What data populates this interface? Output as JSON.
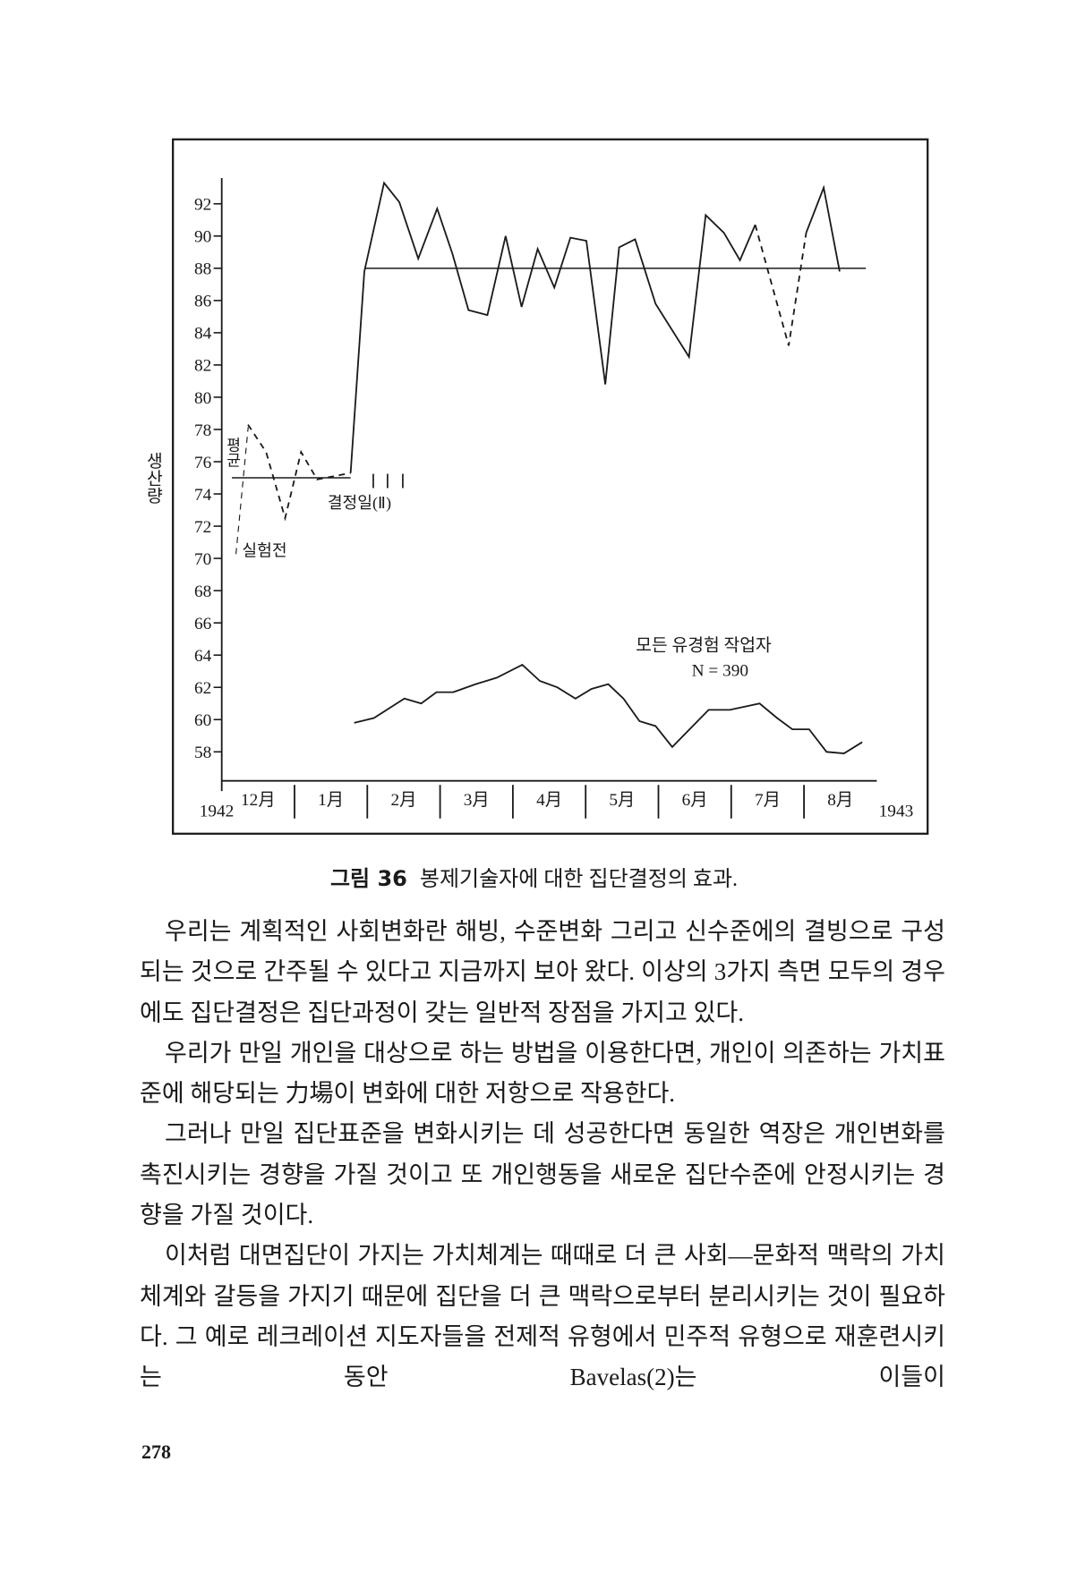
{
  "chart_data": {
    "type": "line",
    "y_label": "생산량",
    "xlim": [
      0,
      9
    ],
    "ylim": [
      56.2,
      93.6
    ],
    "yticks": [
      58,
      60,
      62,
      64,
      66,
      68,
      70,
      72,
      74,
      76,
      78,
      80,
      82,
      84,
      86,
      88,
      90,
      92
    ],
    "xticks": [
      {
        "value": 0,
        "label": "1942"
      },
      {
        "value": 0.5,
        "label": "12月"
      },
      {
        "value": 1.5,
        "label": "1月"
      },
      {
        "value": 2.5,
        "label": "2月"
      },
      {
        "value": 3.5,
        "label": "3月"
      },
      {
        "value": 4.5,
        "label": "4月"
      },
      {
        "value": 5.5,
        "label": "5月"
      },
      {
        "value": 6.5,
        "label": "6月"
      },
      {
        "value": 7.5,
        "label": "7月"
      },
      {
        "value": 8.5,
        "label": "8月"
      },
      {
        "value": 9,
        "label": "1943"
      }
    ],
    "x_dividers": [
      1,
      2,
      3,
      4,
      5,
      6,
      7,
      8
    ],
    "color": "#1a1a1a",
    "series": [
      {
        "style": "dashed",
        "x": [
          0.36,
          0.61,
          0.87,
          1.09,
          1.31,
          1.77
        ],
        "values": [
          78.3,
          76.6,
          72.5,
          76.6,
          74.9,
          75.3
        ]
      },
      {
        "style": "solid",
        "x": [
          1.77,
          1.96,
          2.23,
          2.44,
          2.7,
          2.96,
          3.17,
          3.39,
          3.65,
          3.9,
          4.12,
          4.34,
          4.57,
          4.79,
          5.01,
          5.27,
          5.46,
          5.68,
          5.96,
          6.42,
          6.65,
          6.9,
          7.12,
          7.33,
          7.79,
          8.03,
          8.27,
          8.49
        ],
        "values": [
          75.3,
          87.8,
          93.3,
          92.1,
          88.6,
          91.7,
          88.9,
          85.4,
          85.1,
          90.0,
          85.6,
          89.2,
          86.8,
          89.9,
          89.7,
          80.8,
          89.3,
          89.8,
          85.8,
          82.5,
          91.3,
          90.2,
          88.5,
          90.7,
          null,
          90.2,
          93.0,
          87.8
        ]
      },
      {
        "style": "dashed",
        "x": [
          7.33,
          7.79,
          8.03
        ],
        "values": [
          90.7,
          83.2,
          90.2
        ]
      },
      {
        "style": "solid",
        "x": [
          1.82,
          2.09,
          2.51,
          2.74,
          2.95,
          3.18,
          3.49,
          3.78,
          4.13,
          4.37,
          4.61,
          4.86,
          5.08,
          5.31,
          5.52,
          5.74,
          5.96,
          6.19,
          6.69,
          6.98,
          7.39,
          7.63,
          7.84,
          8.07,
          8.31,
          8.55,
          8.8
        ],
        "values": [
          59.8,
          60.1,
          61.3,
          61.0,
          61.7,
          61.7,
          62.2,
          62.6,
          63.4,
          62.4,
          62.0,
          61.3,
          61.9,
          62.2,
          61.3,
          59.9,
          59.6,
          58.3,
          60.6,
          60.6,
          61.0,
          60.1,
          59.4,
          59.4,
          58.0,
          57.9,
          58.6
        ]
      }
    ],
    "reference_lines": [
      {
        "y": 75,
        "x": [
          0.14,
          1.77
        ]
      },
      {
        "y": 88,
        "x": [
          1.96,
          8.85
        ]
      }
    ],
    "annotations": [
      "평균",
      "실험전",
      "결정일(Ⅱ)",
      "모든 유경험 작업자",
      "N = 390"
    ]
  },
  "caption": {
    "label": "그림 36",
    "text": "봉제기술자에 대한 집단결정의 효과."
  },
  "paragraphs": [
    "우리는 계획적인 사회변화란 해빙, 수준변화 그리고 신수준에의 결빙으로 구성되는 것으로 간주될 수 있다고 지금까지 보아 왔다. 이상의 3가지 측면 모두의 경우에도 집단결정은 집단과정이 갖는 일반적 장점을 가지고 있다.",
    "우리가 만일 개인을 대상으로 하는 방법을 이용한다면, 개인이 의존하는 가치표준에 해당되는 力場이 변화에 대한 저항으로 작용한다.",
    "그러나 만일 집단표준을 변화시키는 데 성공한다면 동일한 역장은 개인변화를 촉진시키는 경향을 가질 것이고 또 개인행동을 새로운 집단수준에 안정시키는 경향을 가질 것이다.",
    "이처럼 대면집단이 가지는 가치체계는 때때로 더 큰 사회—문화적 맥락의 가치체계와 갈등을 가지기 때문에 집단을 더 큰 맥락으로부터 분리시키는 것이 필요하다. 그 예로 레크레이션 지도자들을 전제적 유형에서 민주적 유형으로 재훈련시키는 동안 Bavelas(2)는 이들이"
  ],
  "page_number": "278"
}
